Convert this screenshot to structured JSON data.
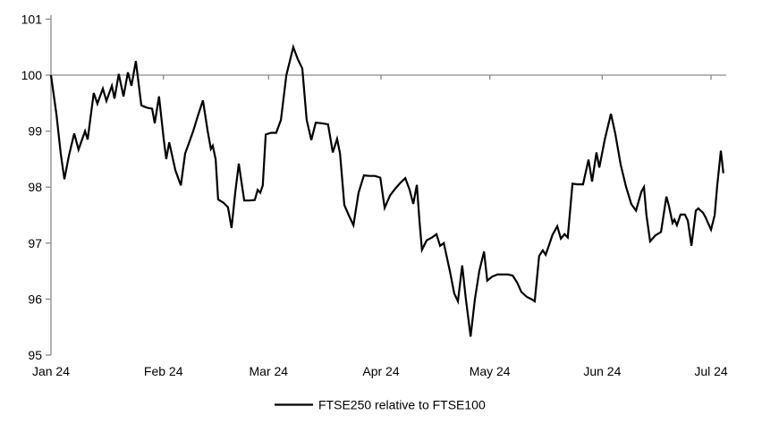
{
  "chart_data": {
    "type": "line",
    "title": "",
    "x_axis": {
      "tick_labels": [
        "Jan 24",
        "Feb 24",
        "Mar 24",
        "Apr 24",
        "May 24",
        "Jun 24",
        "Jul 24"
      ],
      "tick_days": [
        0,
        31,
        60,
        91,
        121,
        152,
        182
      ],
      "unit": "days since Jan 1 2024",
      "range_days": [
        0,
        186
      ]
    },
    "y_axis": {
      "tick_labels": [
        "95",
        "96",
        "97",
        "98",
        "99",
        "100",
        "101"
      ],
      "tick_values": [
        95,
        96,
        97,
        98,
        99,
        100,
        101
      ],
      "ylim": [
        95,
        101
      ],
      "baseline_value": 100
    },
    "grid": "none; x-axis line drawn at value 100 (axis crosses at 100), month ticks below it",
    "legend": {
      "position": "bottom-center",
      "label": "FTSE250 relative to FTSE100"
    },
    "colors": {
      "line": "#000000",
      "axis": "#898989",
      "text": "#000000",
      "background": "#ffffff"
    },
    "series": [
      {
        "name": "FTSE250 relative to FTSE100",
        "color": "#000000",
        "points": [
          [
            0.0,
            100.0
          ],
          [
            1.5,
            99.3
          ],
          [
            2.7,
            98.6
          ],
          [
            3.7,
            98.14
          ],
          [
            4.9,
            98.55
          ],
          [
            6.4,
            98.96
          ],
          [
            7.6,
            98.67
          ],
          [
            9.4,
            99.0
          ],
          [
            10.1,
            98.85
          ],
          [
            11.8,
            99.68
          ],
          [
            12.8,
            99.49
          ],
          [
            14.3,
            99.76
          ],
          [
            15.3,
            99.54
          ],
          [
            16.8,
            99.81
          ],
          [
            17.5,
            99.58
          ],
          [
            18.7,
            100.02
          ],
          [
            20.0,
            99.62
          ],
          [
            21.2,
            100.05
          ],
          [
            22.2,
            99.81
          ],
          [
            23.4,
            100.25
          ],
          [
            24.9,
            99.46
          ],
          [
            26.4,
            99.42
          ],
          [
            27.9,
            99.4
          ],
          [
            28.6,
            99.14
          ],
          [
            29.8,
            99.62
          ],
          [
            31.1,
            98.85
          ],
          [
            31.8,
            98.5
          ],
          [
            32.6,
            98.8
          ],
          [
            34.3,
            98.3
          ],
          [
            35.8,
            98.03
          ],
          [
            37.0,
            98.6
          ],
          [
            38.0,
            98.78
          ],
          [
            39.2,
            99.0
          ],
          [
            40.4,
            99.25
          ],
          [
            41.9,
            99.55
          ],
          [
            43.2,
            99.0
          ],
          [
            44.1,
            98.68
          ],
          [
            44.6,
            98.74
          ],
          [
            45.4,
            98.5
          ],
          [
            46.1,
            97.78
          ],
          [
            47.6,
            97.72
          ],
          [
            48.8,
            97.64
          ],
          [
            49.8,
            97.27
          ],
          [
            50.8,
            97.9
          ],
          [
            51.8,
            98.42
          ],
          [
            52.5,
            98.1
          ],
          [
            53.3,
            97.76
          ],
          [
            54.7,
            97.76
          ],
          [
            56.2,
            97.77
          ],
          [
            57.0,
            97.95
          ],
          [
            57.7,
            97.9
          ],
          [
            58.4,
            98.03
          ],
          [
            59.2,
            98.94
          ],
          [
            60.7,
            98.97
          ],
          [
            62.1,
            98.97
          ],
          [
            63.4,
            99.2
          ],
          [
            64.9,
            100.0
          ],
          [
            66.8,
            100.5
          ],
          [
            68.1,
            100.28
          ],
          [
            69.3,
            100.12
          ],
          [
            70.5,
            99.2
          ],
          [
            71.8,
            98.84
          ],
          [
            73.0,
            99.15
          ],
          [
            74.7,
            99.14
          ],
          [
            76.4,
            99.12
          ],
          [
            77.7,
            98.62
          ],
          [
            78.9,
            98.86
          ],
          [
            79.7,
            98.6
          ],
          [
            80.9,
            97.68
          ],
          [
            82.1,
            97.5
          ],
          [
            83.4,
            97.32
          ],
          [
            84.8,
            97.9
          ],
          [
            86.3,
            98.21
          ],
          [
            87.8,
            98.2
          ],
          [
            89.3,
            98.2
          ],
          [
            90.8,
            98.17
          ],
          [
            92.0,
            97.63
          ],
          [
            93.5,
            97.85
          ],
          [
            94.9,
            97.97
          ],
          [
            96.4,
            98.08
          ],
          [
            97.7,
            98.16
          ],
          [
            98.9,
            97.95
          ],
          [
            99.9,
            97.7
          ],
          [
            100.9,
            98.04
          ],
          [
            101.6,
            97.4
          ],
          [
            102.3,
            96.88
          ],
          [
            103.6,
            97.05
          ],
          [
            105.1,
            97.1
          ],
          [
            106.3,
            97.16
          ],
          [
            107.3,
            96.95
          ],
          [
            108.3,
            97.0
          ],
          [
            110.0,
            96.5
          ],
          [
            111.2,
            96.1
          ],
          [
            112.2,
            95.96
          ],
          [
            113.4,
            96.6
          ],
          [
            114.4,
            96.0
          ],
          [
            115.7,
            95.33
          ],
          [
            116.9,
            96.0
          ],
          [
            118.1,
            96.5
          ],
          [
            119.4,
            96.85
          ],
          [
            120.3,
            96.33
          ],
          [
            121.6,
            96.4
          ],
          [
            123.1,
            96.44
          ],
          [
            124.5,
            96.44
          ],
          [
            126.0,
            96.44
          ],
          [
            127.3,
            96.42
          ],
          [
            128.5,
            96.3
          ],
          [
            129.7,
            96.13
          ],
          [
            131.2,
            96.04
          ],
          [
            132.7,
            95.99
          ],
          [
            133.4,
            95.96
          ],
          [
            134.6,
            96.77
          ],
          [
            135.6,
            96.87
          ],
          [
            136.4,
            96.79
          ],
          [
            137.4,
            96.98
          ],
          [
            138.3,
            97.15
          ],
          [
            139.6,
            97.3
          ],
          [
            140.6,
            97.08
          ],
          [
            141.6,
            97.16
          ],
          [
            142.5,
            97.1
          ],
          [
            143.8,
            98.06
          ],
          [
            145.2,
            98.05
          ],
          [
            146.7,
            98.05
          ],
          [
            148.2,
            98.49
          ],
          [
            149.2,
            98.1
          ],
          [
            150.4,
            98.62
          ],
          [
            151.2,
            98.35
          ],
          [
            152.7,
            98.85
          ],
          [
            154.4,
            99.31
          ],
          [
            155.6,
            98.95
          ],
          [
            157.1,
            98.4
          ],
          [
            158.6,
            98.0
          ],
          [
            160.0,
            97.7
          ],
          [
            161.3,
            97.58
          ],
          [
            162.8,
            97.92
          ],
          [
            163.5,
            98.0
          ],
          [
            164.2,
            97.5
          ],
          [
            165.2,
            97.03
          ],
          [
            166.7,
            97.14
          ],
          [
            168.2,
            97.2
          ],
          [
            169.7,
            97.83
          ],
          [
            170.4,
            97.66
          ],
          [
            171.4,
            97.36
          ],
          [
            171.9,
            97.42
          ],
          [
            172.6,
            97.32
          ],
          [
            173.6,
            97.51
          ],
          [
            174.8,
            97.51
          ],
          [
            175.6,
            97.4
          ],
          [
            176.6,
            96.95
          ],
          [
            177.8,
            97.58
          ],
          [
            178.5,
            97.62
          ],
          [
            179.8,
            97.54
          ],
          [
            180.5,
            97.46
          ],
          [
            182.0,
            97.24
          ],
          [
            183.0,
            97.5
          ],
          [
            183.7,
            98.02
          ],
          [
            184.7,
            98.65
          ],
          [
            185.4,
            98.25
          ]
        ]
      }
    ]
  }
}
